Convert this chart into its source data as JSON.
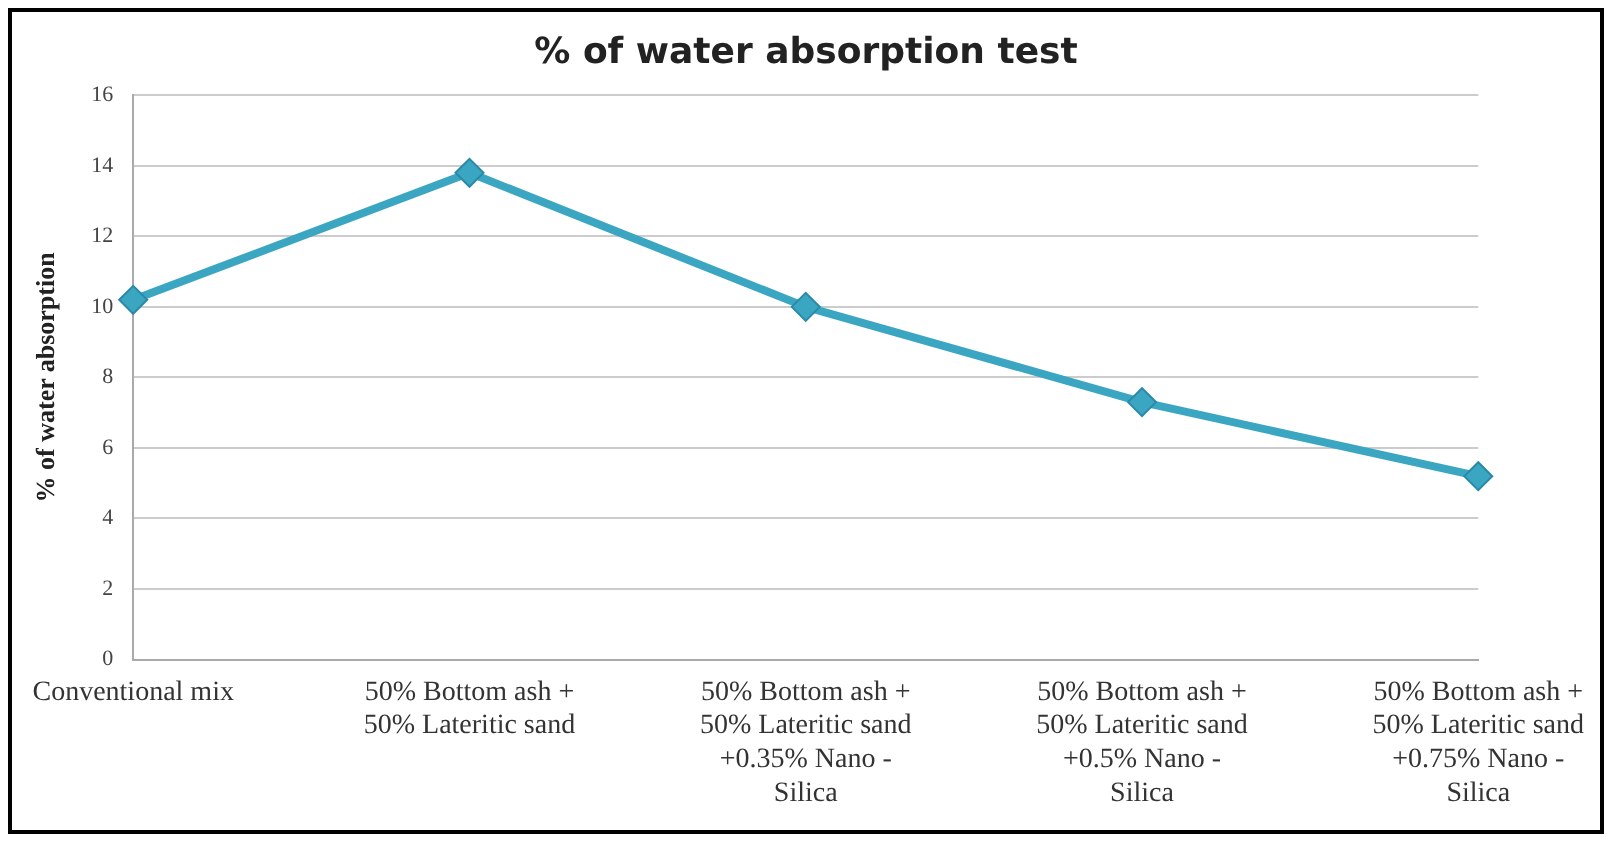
{
  "chart_data": {
    "type": "line",
    "title": "% of water absorption test",
    "ylabel": "% of water absorption",
    "categories": [
      "Conventional mix",
      "50% Bottom ash + 50% Lateritic sand",
      "50% Bottom ash + 50% Lateritic sand +0.35% Nano - Silica",
      "50% Bottom ash + 50% Lateritic sand +0.5% Nano - Silica",
      "50% Bottom ash + 50% Lateritic sand +0.75% Nano - Silica"
    ],
    "series": [
      {
        "color": "#3aa6c2",
        "values": [
          10.2,
          13.8,
          10.0,
          7.3,
          5.2
        ]
      }
    ],
    "ylim": [
      0,
      16
    ],
    "yticks": [
      0,
      2,
      4,
      6,
      8,
      10,
      12,
      14,
      16
    ],
    "grid": "y",
    "legend": false,
    "marker": "diamond",
    "line_style": "solid"
  }
}
